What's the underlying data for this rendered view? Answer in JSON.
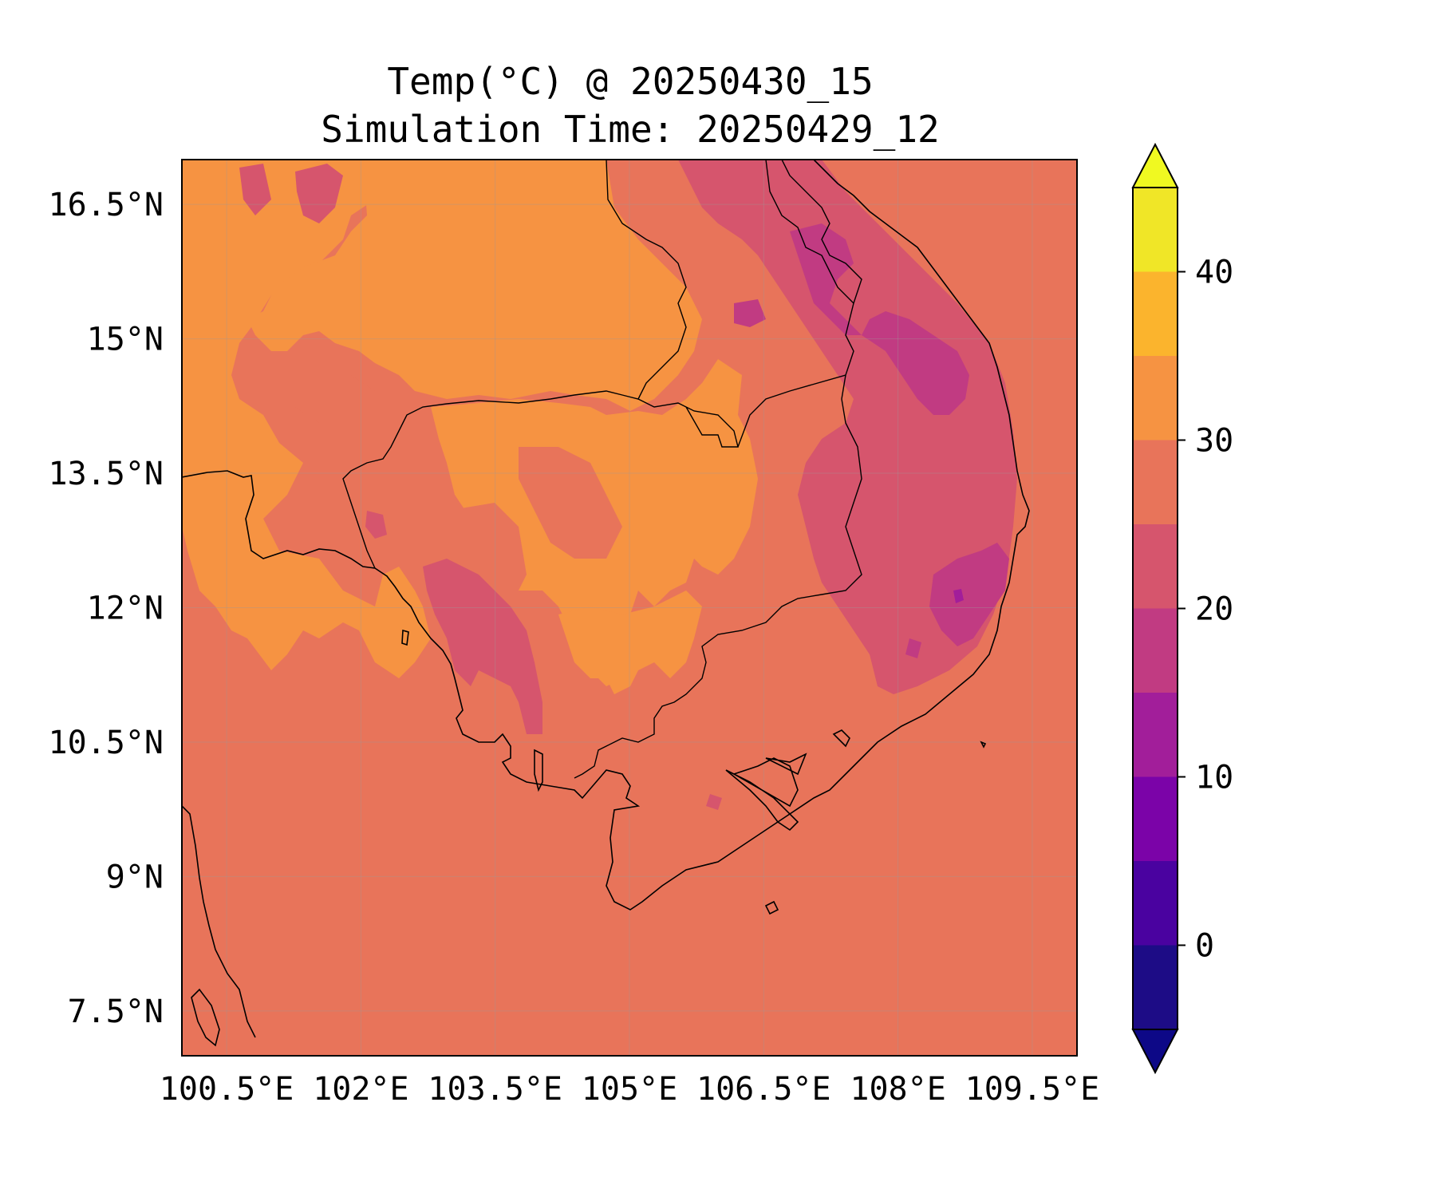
{
  "title": {
    "line1": "Temp(°C) @ 20250430_15",
    "line2": "Simulation Time: 20250429_12"
  },
  "map": {
    "lon_range": [
      100.0,
      110.0
    ],
    "lat_range": [
      7.0,
      17.0
    ],
    "x_ticks": [
      {
        "value": 100.5,
        "label": "100.5°E"
      },
      {
        "value": 102,
        "label": "102°E"
      },
      {
        "value": 103.5,
        "label": "103.5°E"
      },
      {
        "value": 105,
        "label": "105°E"
      },
      {
        "value": 106.5,
        "label": "106.5°E"
      },
      {
        "value": 108,
        "label": "108°E"
      },
      {
        "value": 109.5,
        "label": "109.5°E"
      }
    ],
    "y_ticks": [
      {
        "value": 16.5,
        "label": "16.5°N"
      },
      {
        "value": 15,
        "label": "15°N"
      },
      {
        "value": 13.5,
        "label": "13.5°N"
      },
      {
        "value": 12,
        "label": "12°N"
      },
      {
        "value": 10.5,
        "label": "10.5°N"
      },
      {
        "value": 9,
        "label": "9°N"
      },
      {
        "value": 7.5,
        "label": "7.5°N"
      }
    ],
    "gridlines": true,
    "background_level_color": "#e8745a"
  },
  "colorbar": {
    "colormap": "plasma",
    "extend": "both",
    "levels": [
      -5,
      0,
      5,
      10,
      15,
      20,
      25,
      30,
      35,
      40,
      45
    ],
    "colors": [
      "#1d0c86",
      "#4a02a0",
      "#7b03a8",
      "#a21e9a",
      "#c13b82",
      "#d6556d",
      "#e8745a",
      "#f69342",
      "#fbb42d",
      "#f0e627"
    ],
    "under_color": "#0d0887",
    "over_color": "#f0f921",
    "ticks": [
      {
        "value": 0,
        "label": "0"
      },
      {
        "value": 10,
        "label": "10"
      },
      {
        "value": 20,
        "label": "20"
      },
      {
        "value": 30,
        "label": "30"
      },
      {
        "value": 40,
        "label": "40"
      }
    ]
  },
  "colors": {
    "warm_fill": "#f69342",
    "mid_fill": "#e8745a",
    "cool_fill": "#d6556d",
    "cooler_fill": "#c13b82",
    "coast": "#000000"
  }
}
